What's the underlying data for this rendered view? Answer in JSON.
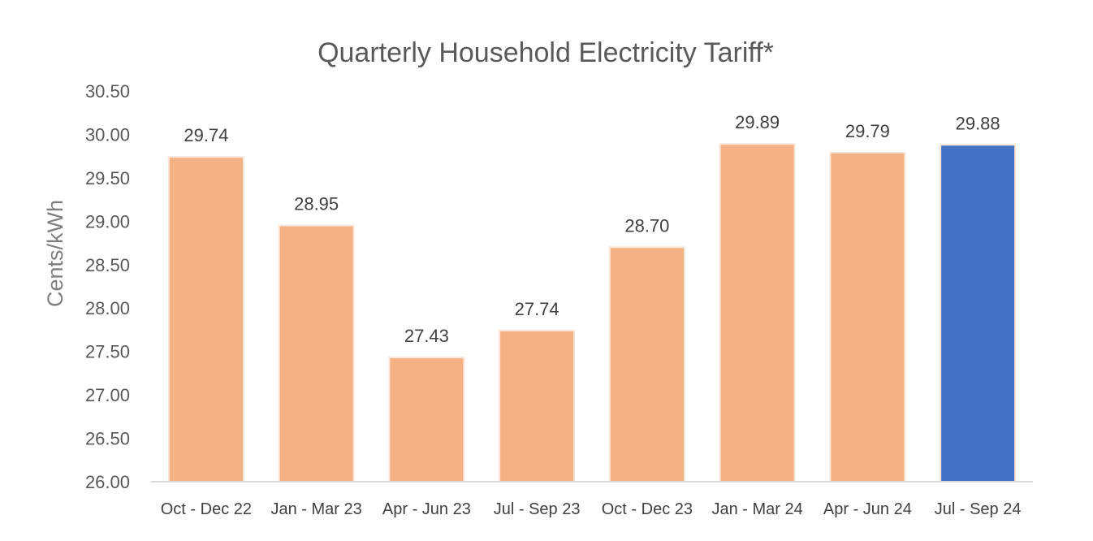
{
  "chart_data": {
    "type": "bar",
    "title": "Quarterly Household Electricity Tariff*",
    "ylabel": "Cents/kWh",
    "xlabel": "",
    "ylim": [
      26.0,
      30.5
    ],
    "yticks": [
      "26.00",
      "26.50",
      "27.00",
      "27.50",
      "28.00",
      "28.50",
      "29.00",
      "29.50",
      "30.00",
      "30.50"
    ],
    "categories": [
      "Oct - Dec 22",
      "Jan - Mar 23",
      "Apr - Jun 23",
      "Jul - Sep 23",
      "Oct - Dec 23",
      "Jan - Mar 24",
      "Apr - Jun 24",
      "Jul - Sep 24"
    ],
    "values": [
      29.74,
      28.95,
      27.43,
      27.74,
      28.7,
      29.89,
      29.79,
      29.88
    ],
    "value_labels": [
      "29.74",
      "28.95",
      "27.43",
      "27.74",
      "28.70",
      "29.89",
      "29.79",
      "29.88"
    ],
    "bar_colors": [
      "#f4b183",
      "#f4b183",
      "#f4b183",
      "#f4b183",
      "#f4b183",
      "#f4b183",
      "#f4b183",
      "#4472c4"
    ],
    "grid": false,
    "legend": "none"
  }
}
